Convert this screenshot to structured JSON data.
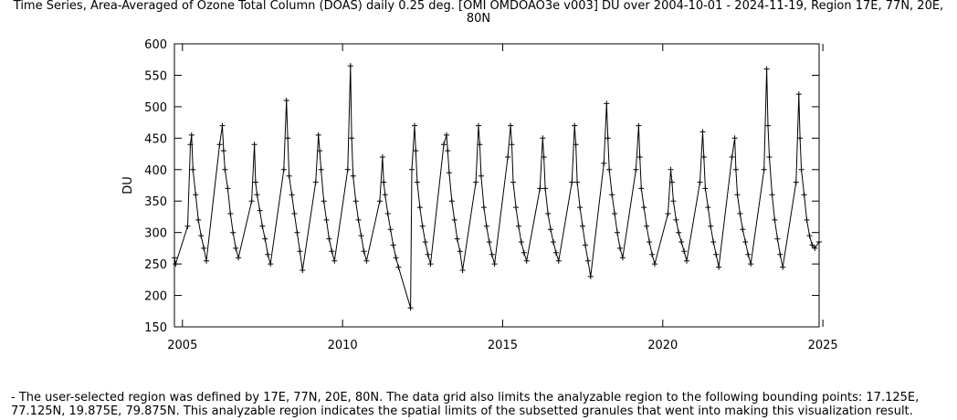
{
  "title": "Time Series, Area-Averaged of Ozone Total Column (DOAS) daily 0.25 deg. [OMI OMDOAO3e v003] DU over 2004-10-01 - 2024-11-19, Region 17E, 77N, 20E, 80N",
  "footnote": "- The user-selected region was defined by 17E, 77N, 20E, 80N. The data grid also limits the analyzable region to the following bounding points: 17.125E, 77.125N, 19.875E, 79.875N. This analyzable region indicates the spatial limits of the subsetted granules that went into making this visualization result.",
  "chart_data": {
    "type": "line",
    "marker": "plus",
    "title": "Time Series, Area-Averaged of Ozone Total Column (DOAS) daily 0.25 deg. [OMI OMDOAO3e v003] DU over 2004-10-01 - 2024-11-19, Region 17E, 77N, 20E, 80N",
    "xlabel": "",
    "ylabel": "DU",
    "xlim": [
      "2004-10-01",
      "2024-11-19"
    ],
    "ylim": [
      150,
      600
    ],
    "x_ticks": [
      2005,
      2010,
      2015,
      2020,
      2025
    ],
    "y_ticks": [
      150,
      200,
      250,
      300,
      350,
      400,
      450,
      500,
      550,
      600
    ],
    "grid": false,
    "series": [
      {
        "name": "",
        "x": [
          "2004-10-01",
          "2004-10-15",
          "2005-03-01",
          "2005-04-01",
          "2005-04-15",
          "2005-05-01",
          "2005-06-01",
          "2005-07-01",
          "2005-08-01",
          "2005-09-01",
          "2005-10-01",
          "2006-03-01",
          "2006-04-01",
          "2006-04-15",
          "2006-05-01",
          "2006-06-01",
          "2006-07-01",
          "2006-08-01",
          "2006-09-01",
          "2006-10-01",
          "2007-03-01",
          "2007-04-01",
          "2007-04-15",
          "2007-05-01",
          "2007-06-01",
          "2007-07-01",
          "2007-08-01",
          "2007-09-01",
          "2007-10-01",
          "2008-03-01",
          "2008-04-01",
          "2008-04-15",
          "2008-05-01",
          "2008-06-01",
          "2008-07-01",
          "2008-08-01",
          "2008-09-01",
          "2008-10-01",
          "2009-03-01",
          "2009-04-01",
          "2009-04-15",
          "2009-05-01",
          "2009-06-01",
          "2009-07-01",
          "2009-08-01",
          "2009-09-01",
          "2009-10-01",
          "2010-03-01",
          "2010-04-01",
          "2010-04-15",
          "2010-05-01",
          "2010-06-01",
          "2010-07-01",
          "2010-08-01",
          "2010-09-01",
          "2010-10-01",
          "2011-03-01",
          "2011-04-01",
          "2011-04-15",
          "2011-05-01",
          "2011-06-01",
          "2011-07-01",
          "2011-08-01",
          "2011-09-01",
          "2011-10-01",
          "2012-02-15",
          "2012-03-01",
          "2012-04-01",
          "2012-04-15",
          "2012-05-01",
          "2012-06-01",
          "2012-07-01",
          "2012-08-01",
          "2012-09-01",
          "2012-10-01",
          "2013-03-01",
          "2013-04-01",
          "2013-04-15",
          "2013-05-01",
          "2013-06-01",
          "2013-07-01",
          "2013-08-01",
          "2013-09-01",
          "2013-10-01",
          "2014-03-01",
          "2014-04-01",
          "2014-04-15",
          "2014-05-01",
          "2014-06-01",
          "2014-07-01",
          "2014-08-01",
          "2014-09-01",
          "2014-10-01",
          "2015-03-01",
          "2015-04-01",
          "2015-04-15",
          "2015-05-01",
          "2015-06-01",
          "2015-07-01",
          "2015-08-01",
          "2015-09-01",
          "2015-10-01",
          "2016-03-01",
          "2016-04-01",
          "2016-04-15",
          "2016-05-01",
          "2016-06-01",
          "2016-07-01",
          "2016-08-01",
          "2016-09-01",
          "2016-10-01",
          "2017-03-01",
          "2017-04-01",
          "2017-04-15",
          "2017-05-01",
          "2017-06-01",
          "2017-07-01",
          "2017-08-01",
          "2017-09-01",
          "2017-10-01",
          "2018-03-01",
          "2018-04-01",
          "2018-04-15",
          "2018-05-01",
          "2018-06-01",
          "2018-07-01",
          "2018-08-01",
          "2018-09-01",
          "2018-10-01",
          "2019-03-01",
          "2019-04-01",
          "2019-04-15",
          "2019-05-01",
          "2019-06-01",
          "2019-07-01",
          "2019-08-01",
          "2019-09-01",
          "2019-10-01",
          "2020-03-01",
          "2020-04-01",
          "2020-04-15",
          "2020-05-01",
          "2020-06-01",
          "2020-07-01",
          "2020-08-01",
          "2020-09-01",
          "2020-10-01",
          "2021-03-01",
          "2021-04-01",
          "2021-04-15",
          "2021-05-01",
          "2021-06-01",
          "2021-07-01",
          "2021-08-01",
          "2021-09-01",
          "2021-10-01",
          "2022-03-01",
          "2022-04-01",
          "2022-04-15",
          "2022-05-01",
          "2022-06-01",
          "2022-07-01",
          "2022-08-01",
          "2022-09-01",
          "2022-10-01",
          "2023-03-01",
          "2023-04-01",
          "2023-04-15",
          "2023-05-01",
          "2023-06-01",
          "2023-07-01",
          "2023-08-01",
          "2023-09-01",
          "2023-10-01",
          "2024-03-01",
          "2024-04-01",
          "2024-04-15",
          "2024-05-01",
          "2024-06-01",
          "2024-07-01",
          "2024-08-01",
          "2024-09-01",
          "2024-10-01",
          "2024-11-19"
        ],
        "y": [
          260,
          250,
          310,
          440,
          455,
          400,
          360,
          320,
          295,
          275,
          255,
          440,
          470,
          430,
          400,
          370,
          330,
          300,
          275,
          260,
          350,
          440,
          380,
          360,
          335,
          310,
          290,
          265,
          250,
          400,
          510,
          450,
          390,
          360,
          330,
          300,
          270,
          240,
          380,
          455,
          430,
          400,
          350,
          320,
          290,
          270,
          255,
          400,
          565,
          450,
          390,
          350,
          320,
          295,
          270,
          255,
          350,
          420,
          380,
          360,
          330,
          305,
          280,
          260,
          245,
          180,
          400,
          470,
          430,
          380,
          340,
          310,
          285,
          265,
          250,
          440,
          455,
          430,
          395,
          350,
          320,
          290,
          270,
          240,
          380,
          470,
          440,
          390,
          340,
          310,
          285,
          265,
          250,
          420,
          470,
          440,
          380,
          340,
          310,
          285,
          268,
          255,
          370,
          450,
          420,
          370,
          330,
          305,
          285,
          268,
          255,
          380,
          470,
          440,
          380,
          340,
          310,
          280,
          255,
          230,
          410,
          505,
          450,
          400,
          360,
          330,
          300,
          275,
          260,
          400,
          470,
          420,
          370,
          340,
          310,
          285,
          265,
          250,
          330,
          400,
          380,
          350,
          320,
          300,
          285,
          270,
          255,
          380,
          460,
          420,
          370,
          340,
          310,
          285,
          265,
          245,
          420,
          450,
          400,
          360,
          330,
          305,
          285,
          265,
          250,
          400,
          560,
          470,
          420,
          360,
          320,
          290,
          265,
          245,
          380,
          520,
          450,
          400,
          360,
          320,
          295,
          280,
          275,
          285
        ]
      }
    ]
  }
}
